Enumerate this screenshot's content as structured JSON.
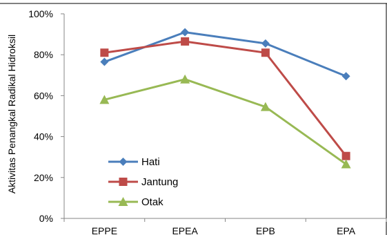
{
  "chart_data": {
    "type": "line",
    "categories": [
      "EPPE",
      "EPEA",
      "EPB",
      "EPA"
    ],
    "ylabel": "Aktivitas Penangkal Radikal Hidroksil",
    "xlabel": "",
    "ylim": [
      0,
      100
    ],
    "yticks": [
      "0%",
      "20%",
      "40%",
      "60%",
      "80%",
      "100%"
    ],
    "ytick_values": [
      0,
      20,
      40,
      60,
      80,
      100
    ],
    "grid": false,
    "legend_position": "lower-left",
    "series": [
      {
        "name": "Hati",
        "values": [
          76.5,
          91,
          85.5,
          69.5
        ],
        "color": "#4a7ebb",
        "marker": "diamond"
      },
      {
        "name": "Jantung",
        "values": [
          81,
          86.5,
          81,
          30.5
        ],
        "color": "#be4b48",
        "marker": "square"
      },
      {
        "name": "Otak",
        "values": [
          58,
          68,
          54.5,
          26.5
        ],
        "color": "#98b954",
        "marker": "triangle"
      }
    ]
  }
}
